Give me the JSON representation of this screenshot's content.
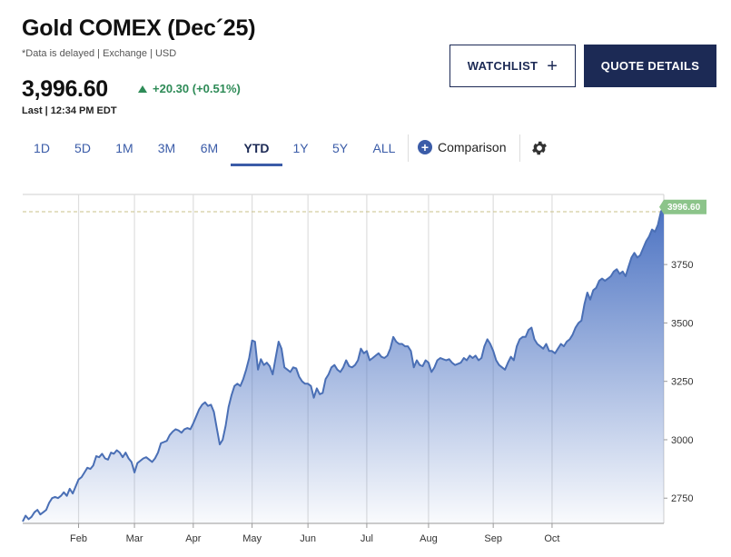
{
  "header": {
    "title": "Gold COMEX (Dec´25)",
    "subtitle": "*Data is delayed | Exchange | USD",
    "price": "3,996.60",
    "change": "+20.30 (+0.51%)",
    "last_time": "Last | 12:34 PM EDT"
  },
  "buttons": {
    "watchlist": "WATCHLIST",
    "quote_details": "QUOTE DETAILS"
  },
  "tabs": [
    {
      "label": "1D",
      "active": false
    },
    {
      "label": "5D",
      "active": false
    },
    {
      "label": "1M",
      "active": false
    },
    {
      "label": "3M",
      "active": false
    },
    {
      "label": "6M",
      "active": false
    },
    {
      "label": "YTD",
      "active": true
    },
    {
      "label": "1Y",
      "active": false
    },
    {
      "label": "5Y",
      "active": false
    },
    {
      "label": "ALL",
      "active": false
    }
  ],
  "comparison_label": "Comparison",
  "colors": {
    "line": "#4a6fb5",
    "fill_top": "#4b72c2",
    "positive": "#2e8b57",
    "navy": "#1c2a55",
    "badge": "#8cc48a"
  },
  "icons": {
    "settings": "gear-icon",
    "add": "plus-icon",
    "up": "triangle-up-icon"
  },
  "chart_data": {
    "type": "area",
    "title": "",
    "xlabel": "",
    "ylabel": "",
    "x_ticks": [
      "Feb",
      "Mar",
      "Apr",
      "May",
      "Jun",
      "Jul",
      "Aug",
      "Sep",
      "Oct"
    ],
    "y_ticks": [
      2750,
      3000,
      3250,
      3500,
      3750
    ],
    "ylim": [
      2642,
      4050
    ],
    "last_value_label": "3996.60",
    "reference_line": 3976.3,
    "grid": true,
    "series": [
      {
        "values": [
          2650,
          2675,
          2660,
          2670,
          2690,
          2700,
          2680,
          2690,
          2700,
          2730,
          2750,
          2755,
          2750,
          2760,
          2775,
          2760,
          2790,
          2770,
          2800,
          2830,
          2840,
          2860,
          2880,
          2875,
          2890,
          2930,
          2925,
          2940,
          2920,
          2915,
          2945,
          2940,
          2955,
          2945,
          2925,
          2945,
          2920,
          2905,
          2860,
          2900,
          2910,
          2920,
          2925,
          2915,
          2905,
          2920,
          2945,
          2985,
          2990,
          2995,
          3020,
          3035,
          3045,
          3040,
          3030,
          3045,
          3050,
          3045,
          3070,
          3100,
          3130,
          3150,
          3160,
          3145,
          3150,
          3120,
          3050,
          2980,
          3000,
          3060,
          3140,
          3190,
          3230,
          3240,
          3230,
          3260,
          3300,
          3350,
          3425,
          3420,
          3300,
          3345,
          3320,
          3330,
          3315,
          3280,
          3350,
          3420,
          3390,
          3310,
          3300,
          3290,
          3310,
          3305,
          3270,
          3250,
          3240,
          3240,
          3230,
          3180,
          3220,
          3195,
          3200,
          3260,
          3280,
          3310,
          3320,
          3300,
          3290,
          3310,
          3340,
          3315,
          3310,
          3320,
          3340,
          3390,
          3370,
          3380,
          3340,
          3350,
          3360,
          3370,
          3355,
          3350,
          3360,
          3390,
          3440,
          3420,
          3410,
          3410,
          3400,
          3400,
          3380,
          3310,
          3340,
          3320,
          3315,
          3340,
          3330,
          3290,
          3310,
          3340,
          3350,
          3345,
          3340,
          3345,
          3330,
          3320,
          3325,
          3330,
          3350,
          3340,
          3360,
          3350,
          3360,
          3340,
          3350,
          3400,
          3430,
          3410,
          3380,
          3340,
          3320,
          3310,
          3300,
          3330,
          3355,
          3340,
          3400,
          3430,
          3440,
          3440,
          3470,
          3480,
          3430,
          3410,
          3400,
          3390,
          3410,
          3380,
          3380,
          3370,
          3390,
          3410,
          3400,
          3420,
          3430,
          3450,
          3480,
          3500,
          3510,
          3580,
          3630,
          3600,
          3640,
          3650,
          3680,
          3690,
          3680,
          3690,
          3700,
          3720,
          3730,
          3710,
          3720,
          3700,
          3740,
          3780,
          3800,
          3780,
          3790,
          3820,
          3850,
          3870,
          3900,
          3890,
          3920,
          3976,
          3996.6
        ]
      }
    ]
  }
}
